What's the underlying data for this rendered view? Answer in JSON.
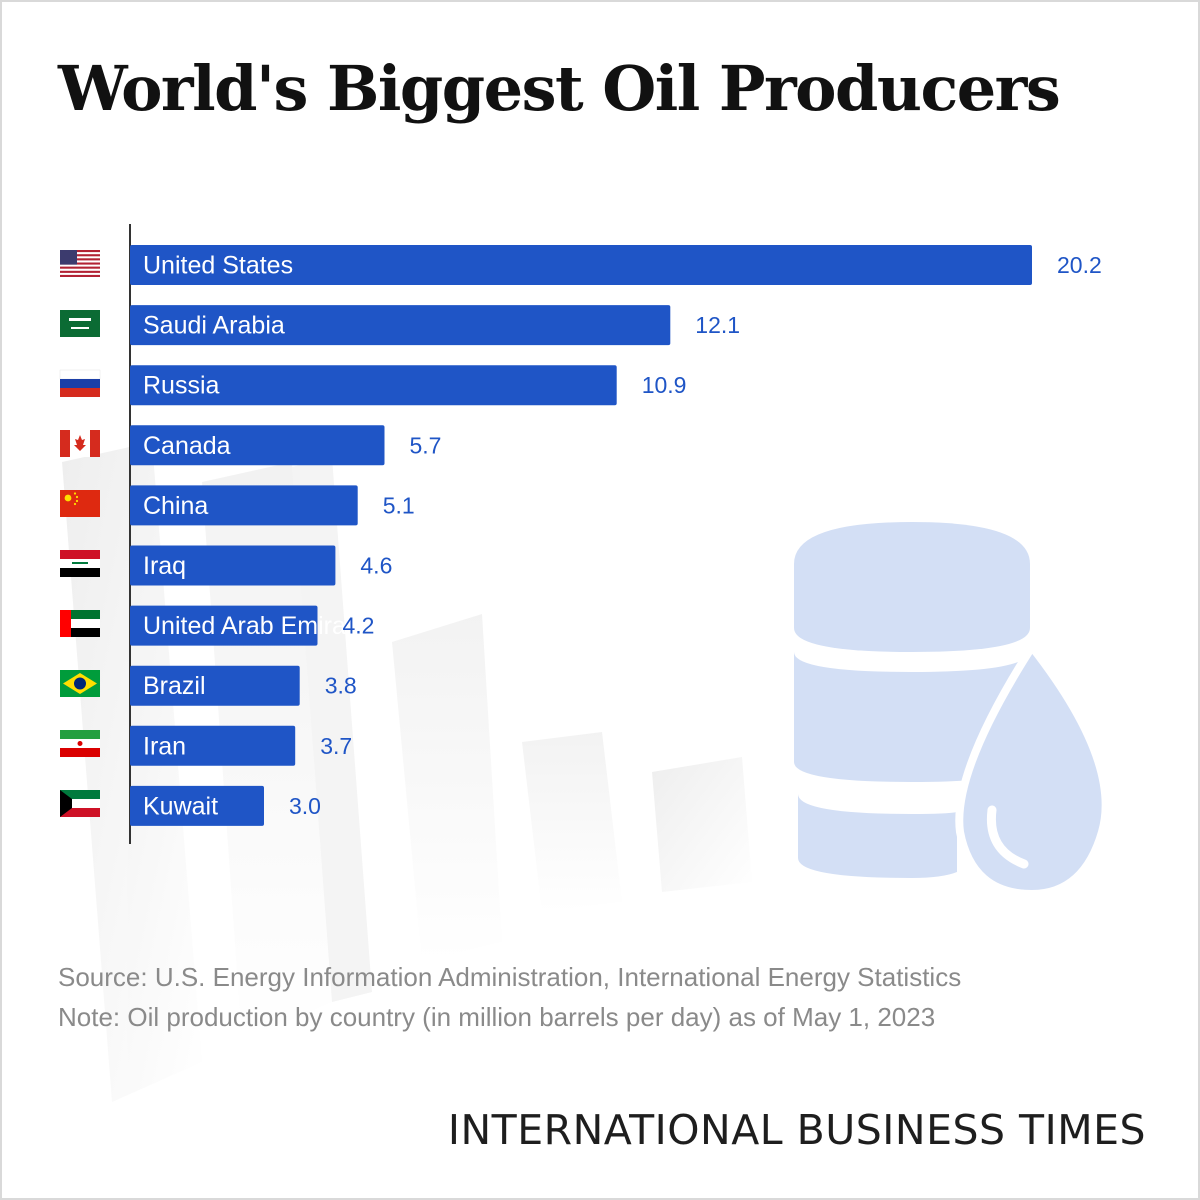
{
  "title": "World's Biggest Oil Producers",
  "chart_data": {
    "type": "bar",
    "orientation": "horizontal",
    "categories": [
      "United States",
      "Saudi Arabia",
      "Russia",
      "Canada",
      "China",
      "Iraq",
      "United Arab Emirates",
      "Brazil",
      "Iran",
      "Kuwait"
    ],
    "values": [
      20.2,
      12.1,
      10.9,
      5.7,
      5.1,
      4.6,
      4.2,
      3.8,
      3.7,
      3.0
    ],
    "value_labels": [
      "20.2",
      "12.1",
      "10.9",
      "5.7",
      "5.1",
      "4.6",
      "4.2",
      "3.8",
      "3.7",
      "3.0"
    ],
    "bar_color": "#1f55c6",
    "value_color": "#1f55c6",
    "grid": false
  },
  "footer": {
    "source": "Source: U.S. Energy Information Administration, International Energy Statistics",
    "note": "Note: Oil production by country (in million barrels per day) as of May 1, 2023"
  },
  "brand": "INTERNATIONAL BUSINESS TIMES",
  "decoration": {
    "barrel_icon": "oil-barrel-icon",
    "drop_icon": "oil-drop-icon",
    "barrel_color": "#d3dff5"
  },
  "flags": [
    "us-flag-icon",
    "saudi-arabia-flag-icon",
    "russia-flag-icon",
    "canada-flag-icon",
    "china-flag-icon",
    "iraq-flag-icon",
    "uae-flag-icon",
    "brazil-flag-icon",
    "iran-flag-icon",
    "kuwait-flag-icon"
  ]
}
